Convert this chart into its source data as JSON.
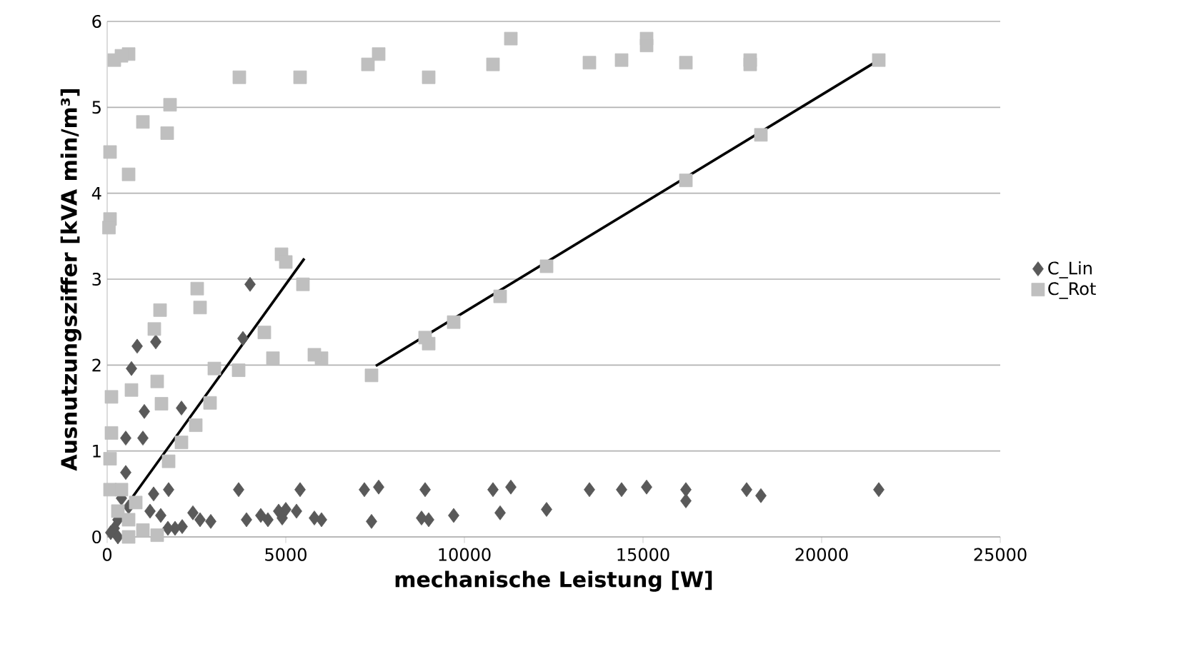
{
  "chart_data": {
    "type": "scatter",
    "xlabel": "mechanische Leistung [W]",
    "ylabel": "Ausnutzungsziffer [kVA min/m³]",
    "xlim": [
      0,
      25000
    ],
    "ylim": [
      0,
      6
    ],
    "xticks": [
      0,
      5000,
      10000,
      15000,
      20000,
      25000
    ],
    "yticks": [
      0,
      1,
      2,
      3,
      4,
      5,
      6
    ],
    "grid": "y",
    "legend": "right",
    "series": [
      {
        "name": "C_Lin",
        "color": "#595959",
        "marker": "diamond",
        "x": [
          21600,
          18300,
          17900,
          16200,
          16200,
          15100,
          14400,
          13500,
          12300,
          11300,
          11000,
          10800,
          9700,
          9000,
          8800,
          8900,
          7600,
          7400,
          7200,
          6000,
          5800,
          5400,
          5300,
          5000,
          4800,
          4900,
          4500,
          4300,
          3900,
          3680,
          4000,
          3800,
          2900,
          2600,
          2400,
          2100,
          1900,
          1720,
          1700,
          2080,
          1360,
          1000,
          1040,
          840,
          680,
          520,
          520,
          400,
          300,
          200,
          100,
          600,
          300,
          1200,
          1500,
          1300
        ],
        "values": [
          0.55,
          0.48,
          0.55,
          0.55,
          0.42,
          0.58,
          0.55,
          0.55,
          0.32,
          0.58,
          0.28,
          0.55,
          0.25,
          0.2,
          0.22,
          0.55,
          0.58,
          0.18,
          0.55,
          0.2,
          0.22,
          0.55,
          0.3,
          0.32,
          0.3,
          0.22,
          0.2,
          0.25,
          0.2,
          0.55,
          2.94,
          2.31,
          0.18,
          0.2,
          0.28,
          0.12,
          0.1,
          0.55,
          0.1,
          1.5,
          2.27,
          1.15,
          1.46,
          2.22,
          1.96,
          1.15,
          0.75,
          0.45,
          0.2,
          0.1,
          0.05,
          0.35,
          0.0,
          0.3,
          0.25,
          0.5
        ]
      },
      {
        "name": "C_Rot",
        "color": "#bfbfbf",
        "marker": "square",
        "x": [
          21600,
          18300,
          18000,
          18000,
          16200,
          16200,
          15100,
          15100,
          14400,
          13500,
          12300,
          11300,
          11000,
          10800,
          9700,
          9000,
          8900,
          9000,
          7600,
          7300,
          7400,
          6000,
          5800,
          5400,
          5480,
          4880,
          5000,
          4640,
          4400,
          3700,
          3680,
          3000,
          2880,
          2520,
          2600,
          2480,
          2080,
          1480,
          1520,
          1320,
          1760,
          1000,
          1680,
          600,
          600,
          400,
          200,
          80,
          80,
          50,
          120,
          680,
          120,
          80,
          1400,
          1720,
          80,
          300,
          600,
          800,
          1000,
          1400,
          600,
          400
        ],
        "values": [
          5.55,
          4.68,
          5.5,
          5.55,
          5.52,
          4.15,
          5.8,
          5.72,
          5.55,
          5.52,
          3.15,
          5.8,
          2.8,
          5.5,
          2.5,
          2.25,
          2.32,
          5.35,
          5.62,
          5.5,
          1.88,
          2.08,
          2.12,
          5.35,
          2.94,
          3.29,
          3.2,
          2.08,
          2.38,
          5.35,
          1.94,
          1.96,
          1.56,
          2.89,
          2.67,
          1.3,
          1.1,
          2.64,
          1.55,
          2.42,
          5.03,
          4.83,
          4.7,
          4.22,
          5.62,
          5.6,
          5.55,
          4.48,
          3.7,
          3.6,
          1.63,
          1.71,
          1.21,
          0.91,
          1.81,
          0.88,
          0.55,
          0.3,
          0.2,
          0.4,
          0.08,
          0.02,
          0.0,
          0.55
        ]
      },
      {
        "type": "line",
        "color": "#000000",
        "marker": "none",
        "x": [
          720,
          5520
        ],
        "values": [
          0.47,
          3.24
        ]
      },
      {
        "type": "line",
        "color": "#000000",
        "marker": "none",
        "x": [
          7520,
          21600
        ],
        "values": [
          1.99,
          5.55
        ]
      }
    ]
  }
}
